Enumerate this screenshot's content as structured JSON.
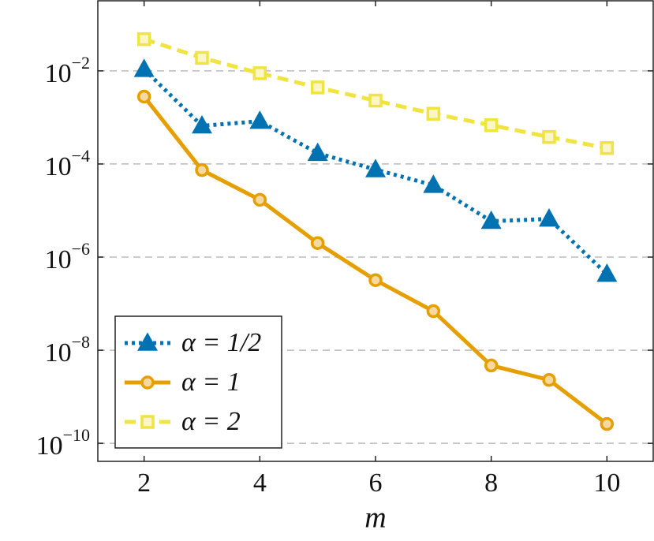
{
  "chart_data": {
    "type": "line",
    "xlabel": "m",
    "x": [
      2,
      3,
      4,
      5,
      6,
      7,
      8,
      9,
      10
    ],
    "series": [
      {
        "name": "α = 1/2",
        "color": "#0072b2",
        "linestyle": "dotted",
        "marker": "triangle",
        "values": [
          0.0108,
          0.00066,
          0.00083,
          0.00017,
          7.6e-05,
          3.5e-05,
          5.9e-06,
          6.6e-06,
          4.3e-07
        ]
      },
      {
        "name": "α = 1",
        "color": "#e69f00",
        "linestyle": "solid",
        "marker": "circle",
        "values": [
          0.0028,
          7.4e-05,
          1.7e-05,
          2e-06,
          3.2e-07,
          6.9e-08,
          4.7e-09,
          2.3e-09,
          2.6e-10
        ]
      },
      {
        "name": "α = 2",
        "color": "#f0e442",
        "linestyle": "dashed",
        "marker": "square",
        "values": [
          0.048,
          0.019,
          0.0089,
          0.0044,
          0.0023,
          0.0012,
          0.00068,
          0.00038,
          0.00022
        ]
      }
    ],
    "xlim": [
      1.2,
      10.8
    ],
    "xticks": [
      2,
      4,
      6,
      8,
      10
    ],
    "ylog": true,
    "ylim": [
      4.1e-11,
      0.32
    ],
    "yticks": [
      {
        "value": 0.01,
        "label": "10−2"
      },
      {
        "value": 0.0001,
        "label": "10−4"
      },
      {
        "value": 1e-06,
        "label": "10−6"
      },
      {
        "value": 1e-08,
        "label": "10−8"
      },
      {
        "value": 1e-10,
        "label": "10−10"
      }
    ],
    "grid": "y",
    "legend": "lower left"
  }
}
